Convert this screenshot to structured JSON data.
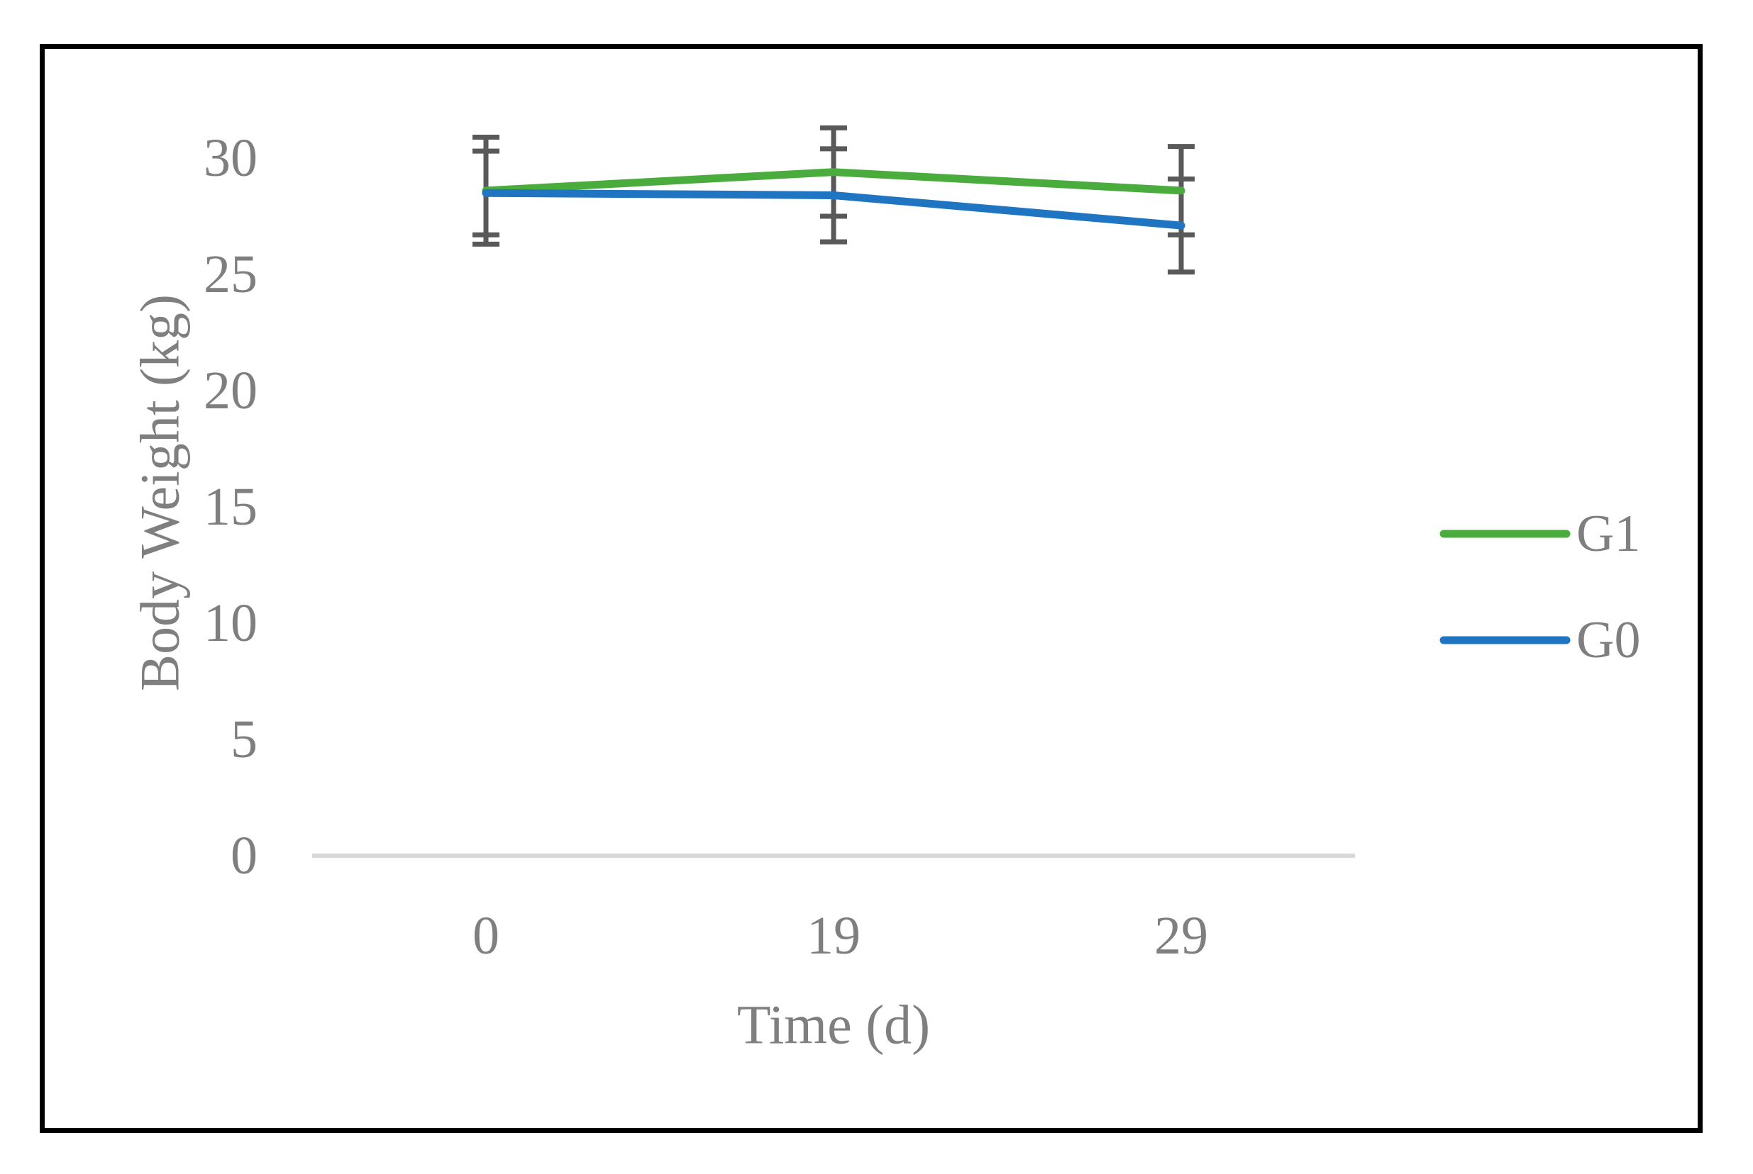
{
  "chart_data": {
    "type": "line",
    "title": "",
    "xlabel": "Time (d)",
    "ylabel": "Body Weight (kg)",
    "x_categories": [
      "0",
      "19",
      "29"
    ],
    "yticks": [
      0,
      5,
      10,
      15,
      20,
      25,
      30
    ],
    "ylim": [
      0,
      32.5
    ],
    "grid": false,
    "legend_position": "center-right",
    "colors": {
      "axis_baseline": "#D9D9D9",
      "error_bar": "#595959",
      "text": "#7F7F7F",
      "figure_border": "#000000",
      "background": "#FFFFFF"
    },
    "series": [
      {
        "name": "G1",
        "color": "#4AAC3C",
        "values": [
          28.6,
          29.4,
          28.6
        ],
        "errors": [
          2.3,
          1.9,
          1.9
        ]
      },
      {
        "name": "G0",
        "color": "#1F75C1",
        "values": [
          28.5,
          28.4,
          27.1
        ],
        "errors": [
          1.8,
          2.0,
          2.0
        ]
      }
    ]
  }
}
